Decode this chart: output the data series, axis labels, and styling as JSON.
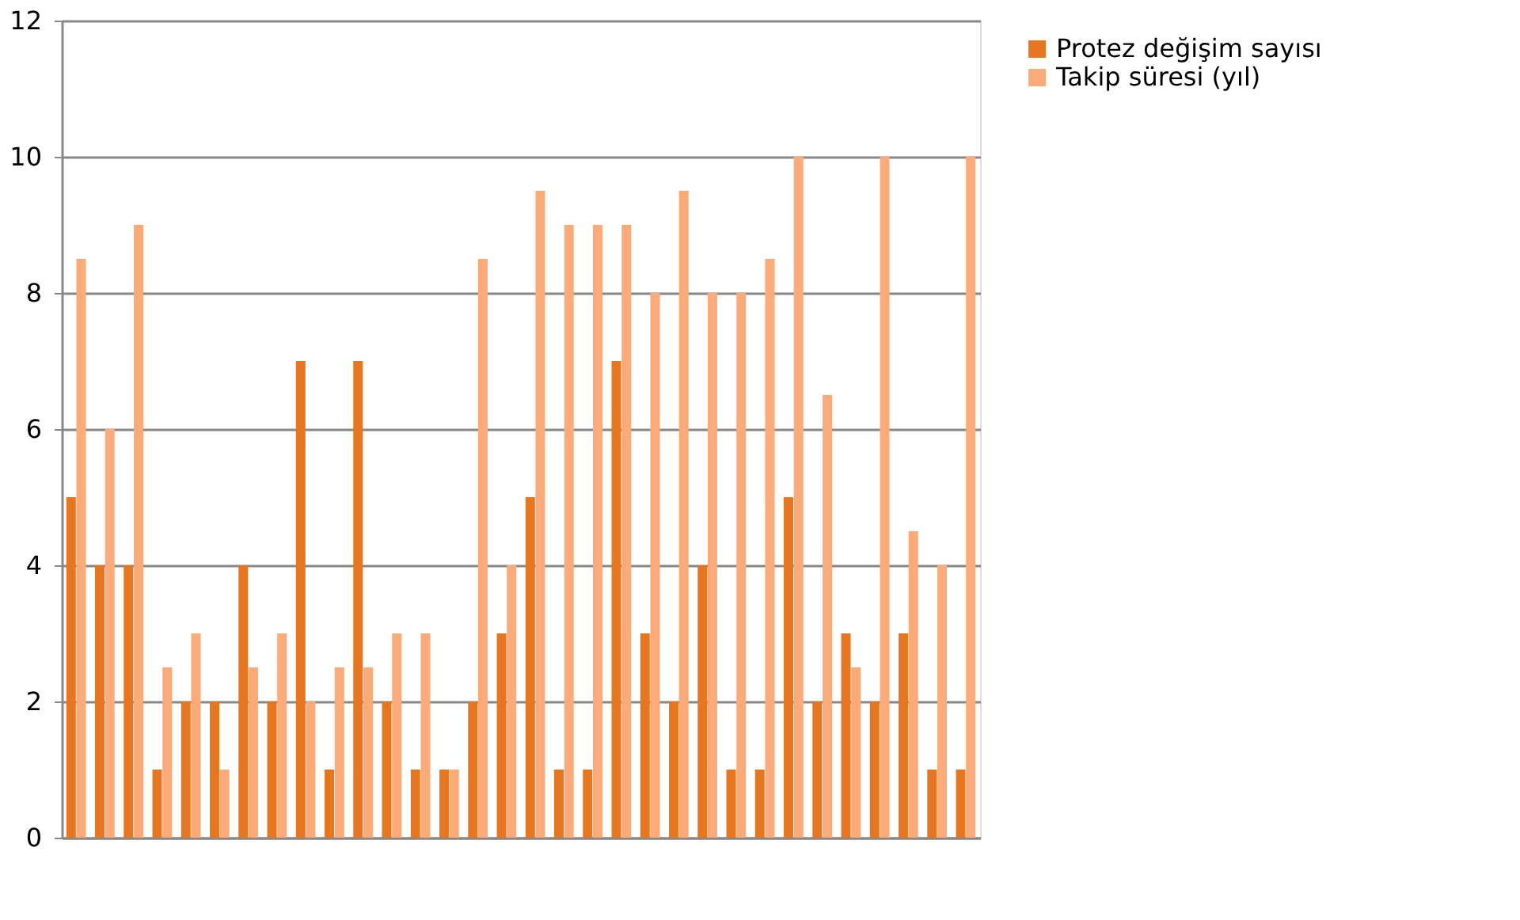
{
  "chart_data": {
    "type": "bar",
    "categories": [
      null,
      null,
      null,
      null,
      null,
      null,
      null,
      null,
      null,
      null,
      null,
      null,
      null,
      null,
      null,
      null,
      null,
      null,
      null,
      null,
      null,
      null,
      null,
      null,
      null,
      null,
      null,
      null,
      null,
      null,
      null,
      null
    ],
    "series": [
      {
        "name": "Protez değişim sayısı",
        "color": "#e8761e",
        "values": [
          5,
          4,
          4,
          1,
          2,
          2,
          4,
          2,
          7,
          1,
          7,
          2,
          1,
          1,
          2,
          3,
          5,
          1,
          1,
          7,
          3,
          2,
          4,
          1,
          1,
          5,
          2,
          3,
          2,
          3,
          1,
          1
        ]
      },
      {
        "name": "Takip süresi (yıl)",
        "color": "#fcaa78",
        "values": [
          8.5,
          6,
          9,
          2.5,
          3,
          1,
          2.5,
          3,
          2,
          2.5,
          2.5,
          3,
          3,
          1,
          8.5,
          4,
          9.5,
          9,
          9,
          9,
          8,
          9.5,
          8,
          8,
          8.5,
          10,
          6.5,
          2.5,
          10,
          4.5,
          4,
          10
        ]
      }
    ],
    "ylim": [
      0,
      12
    ],
    "yticks": [
      0,
      2,
      4,
      6,
      8,
      10,
      12
    ],
    "grid": "y",
    "legend": "right",
    "tick_labels": "y"
  }
}
